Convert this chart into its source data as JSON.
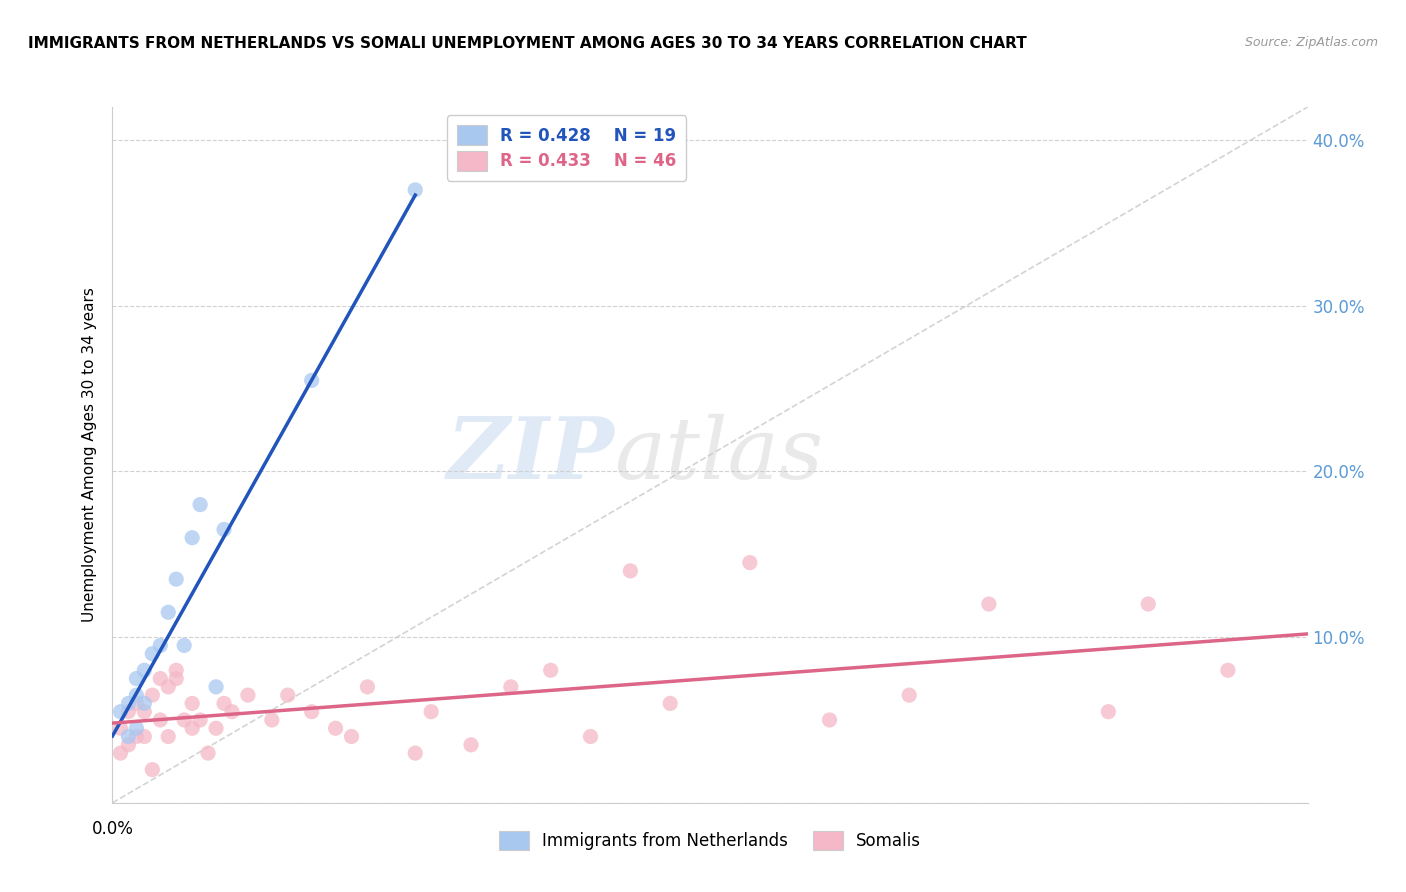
{
  "title": "IMMIGRANTS FROM NETHERLANDS VS SOMALI UNEMPLOYMENT AMONG AGES 30 TO 34 YEARS CORRELATION CHART",
  "source": "Source: ZipAtlas.com",
  "ylabel": "Unemployment Among Ages 30 to 34 years",
  "xlim": [
    0.0,
    0.15
  ],
  "ylim": [
    0.0,
    0.42
  ],
  "yticks": [
    0.0,
    0.1,
    0.2,
    0.3,
    0.4
  ],
  "background_color": "#ffffff",
  "grid_color": "#cccccc",
  "watermark_zip": "ZIP",
  "watermark_atlas": "atlas",
  "legend_r1": "R = 0.428",
  "legend_n1": "N = 19",
  "legend_r2": "R = 0.433",
  "legend_n2": "N = 46",
  "netherlands_color": "#a8c8f0",
  "somali_color": "#f4b8c8",
  "netherlands_line_color": "#2255bb",
  "somali_line_color": "#dd6688",
  "diag_color": "#cccccc",
  "right_tick_color": "#5b9bd5",
  "netherlands_x": [
    0.001,
    0.002,
    0.002,
    0.003,
    0.003,
    0.003,
    0.004,
    0.004,
    0.005,
    0.006,
    0.007,
    0.008,
    0.009,
    0.01,
    0.011,
    0.013,
    0.014,
    0.025,
    0.038
  ],
  "netherlands_y": [
    0.055,
    0.04,
    0.06,
    0.045,
    0.065,
    0.075,
    0.06,
    0.08,
    0.09,
    0.095,
    0.115,
    0.135,
    0.095,
    0.16,
    0.18,
    0.07,
    0.165,
    0.255,
    0.37
  ],
  "somali_x": [
    0.001,
    0.001,
    0.002,
    0.002,
    0.003,
    0.003,
    0.004,
    0.004,
    0.005,
    0.005,
    0.006,
    0.006,
    0.007,
    0.007,
    0.008,
    0.008,
    0.009,
    0.01,
    0.01,
    0.011,
    0.012,
    0.013,
    0.014,
    0.015,
    0.017,
    0.02,
    0.022,
    0.025,
    0.028,
    0.03,
    0.032,
    0.038,
    0.04,
    0.045,
    0.05,
    0.055,
    0.06,
    0.065,
    0.07,
    0.08,
    0.09,
    0.1,
    0.11,
    0.125,
    0.13,
    0.14
  ],
  "somali_y": [
    0.03,
    0.045,
    0.035,
    0.055,
    0.04,
    0.06,
    0.04,
    0.055,
    0.02,
    0.065,
    0.05,
    0.075,
    0.04,
    0.07,
    0.075,
    0.08,
    0.05,
    0.045,
    0.06,
    0.05,
    0.03,
    0.045,
    0.06,
    0.055,
    0.065,
    0.05,
    0.065,
    0.055,
    0.045,
    0.04,
    0.07,
    0.03,
    0.055,
    0.035,
    0.07,
    0.08,
    0.04,
    0.14,
    0.06,
    0.145,
    0.05,
    0.065,
    0.12,
    0.055,
    0.12,
    0.08
  ],
  "marker_size": 120,
  "marker_alpha": 0.75
}
